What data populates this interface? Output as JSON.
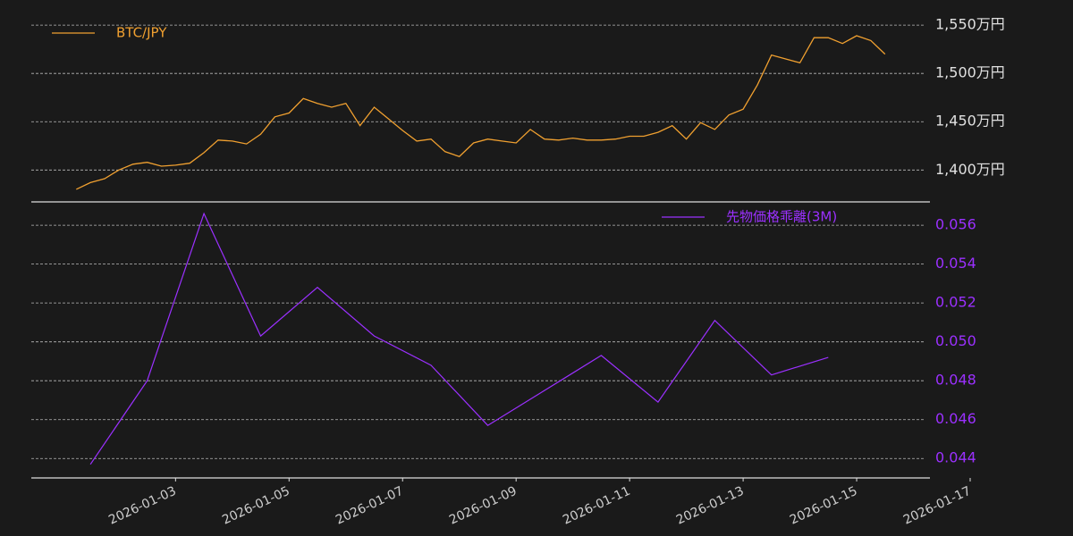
{
  "chart_data": [
    {
      "type": "line",
      "legend": "upper left",
      "grid": true,
      "xlim": [
        "2025-12-31 11:00",
        "2026-01-17"
      ],
      "x": [
        "2026-01-01 06:00",
        "2026-01-01 12:00",
        "2026-01-01 18:00",
        "2026-01-02 00:00",
        "2026-01-02 06:00",
        "2026-01-02 12:00",
        "2026-01-02 18:00",
        "2026-01-03 00:00",
        "2026-01-03 06:00",
        "2026-01-03 12:00",
        "2026-01-03 18:00",
        "2026-01-04 00:00",
        "2026-01-04 06:00",
        "2026-01-04 12:00",
        "2026-01-04 18:00",
        "2026-01-05 00:00",
        "2026-01-05 06:00",
        "2026-01-05 12:00",
        "2026-01-05 18:00",
        "2026-01-06 00:00",
        "2026-01-06 06:00",
        "2026-01-06 12:00",
        "2026-01-06 18:00",
        "2026-01-07 00:00",
        "2026-01-07 06:00",
        "2026-01-07 12:00",
        "2026-01-07 18:00",
        "2026-01-08 00:00",
        "2026-01-08 06:00",
        "2026-01-08 12:00",
        "2026-01-08 18:00",
        "2026-01-09 00:00",
        "2026-01-09 06:00",
        "2026-01-09 12:00",
        "2026-01-09 18:00",
        "2026-01-10 00:00",
        "2026-01-10 06:00",
        "2026-01-10 12:00",
        "2026-01-10 18:00",
        "2026-01-11 00:00",
        "2026-01-11 06:00",
        "2026-01-11 12:00",
        "2026-01-11 18:00",
        "2026-01-12 00:00",
        "2026-01-12 06:00",
        "2026-01-12 12:00",
        "2026-01-12 18:00",
        "2026-01-13 00:00",
        "2026-01-13 06:00",
        "2026-01-13 12:00",
        "2026-01-13 18:00",
        "2026-01-14 00:00",
        "2026-01-14 06:00",
        "2026-01-14 12:00",
        "2026-01-14 18:00",
        "2026-01-15 00:00",
        "2026-01-15 06:00",
        "2026-01-15 12:00"
      ],
      "series": [
        {
          "name": "BTC/JPY",
          "color": "#f0a030",
          "values": [
            1380,
            1387,
            1391,
            1400,
            1406,
            1408,
            1404,
            1405,
            1407,
            1418,
            1431,
            1430,
            1427,
            1437,
            1455,
            1459,
            1474,
            1469,
            1465,
            1469,
            1446,
            1465,
            1453,
            1441,
            1430,
            1432,
            1419,
            1414,
            1428,
            1432,
            1430,
            1428,
            1442,
            1432,
            1431,
            1433,
            1431,
            1431,
            1432,
            1435,
            1435,
            1439,
            1446,
            1432,
            1449,
            1442,
            1457,
            1463,
            1488,
            1519,
            1515,
            1511,
            1537,
            1537,
            1531,
            1539,
            1534,
            1520
          ]
        }
      ],
      "ylim": [
        1367,
        1576
      ],
      "yticks": [
        {
          "value": 1400,
          "label": "1,400万円"
        },
        {
          "value": 1450,
          "label": "1,450万円"
        },
        {
          "value": 1500,
          "label": "1,500万円"
        },
        {
          "value": 1550,
          "label": "1,550万円"
        }
      ]
    },
    {
      "type": "line",
      "legend": "upper right",
      "grid": true,
      "xlim": [
        "2025-12-31 11:00",
        "2026-01-17"
      ],
      "x": [
        "2026-01-01 12:00",
        "2026-01-02 12:00",
        "2026-01-03 12:00",
        "2026-01-04 12:00",
        "2026-01-05 12:00",
        "2026-01-06 12:00",
        "2026-01-07 12:00",
        "2026-01-08 12:00",
        "2026-01-09 12:00",
        "2026-01-10 12:00",
        "2026-01-11 12:00",
        "2026-01-12 12:00",
        "2026-01-13 12:00",
        "2026-01-14 12:00"
      ],
      "series": [
        {
          "name": "先物価格乖離(3M)",
          "color": "#9b30ff",
          "values": [
            0.0437,
            0.048,
            0.0566,
            0.0503,
            0.0528,
            0.0503,
            0.0488,
            0.0457,
            0.0475,
            0.0493,
            0.0469,
            0.0511,
            0.0483,
            0.0492
          ]
        }
      ],
      "ylim": [
        0.043,
        0.0572
      ],
      "yticks": [
        0.044,
        0.046,
        0.048,
        {
          "value": 0.05,
          "label": "0.050"
        },
        0.052,
        0.054,
        0.056
      ],
      "xticks": [
        "2026-01-03",
        "2026-01-05",
        "2026-01-07",
        "2026-01-09",
        "2026-01-11",
        "2026-01-13",
        "2026-01-15",
        "2026-01-17"
      ]
    }
  ]
}
